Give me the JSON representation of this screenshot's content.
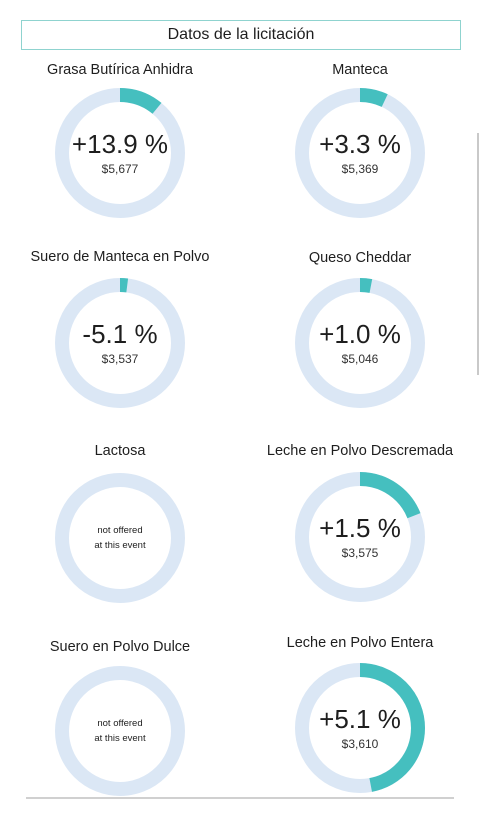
{
  "header": {
    "title": "Datos de la licitación"
  },
  "colors": {
    "track": "#dbe7f5",
    "accent": "#45bfbf",
    "frame": "#8fd3cf"
  },
  "products": [
    {
      "name": "Grasa Butírica Anhidra",
      "change": "+13.9 %",
      "price": "$5,677",
      "fraction": 0.11
    },
    {
      "name": "Manteca",
      "change": "+3.3 %",
      "price": "$5,369",
      "fraction": 0.07
    },
    {
      "name": "Suero de Manteca en Polvo",
      "change": "-5.1 %",
      "price": "$3,537",
      "fraction": 0.02
    },
    {
      "name": "Queso Cheddar",
      "change": "+1.0 %",
      "price": "$5,046",
      "fraction": 0.03
    },
    {
      "name": "Lactosa",
      "note_line1": "not offered",
      "note_line2": "at this event"
    },
    {
      "name": "Leche en Polvo Descremada",
      "change": "+1.5 %",
      "price": "$3,575",
      "fraction": 0.19
    },
    {
      "name": "Suero en Polvo Dulce",
      "note_line1": "not offered",
      "note_line2": "at this event"
    },
    {
      "name": "Leche en Polvo Entera",
      "change": "+5.1 %",
      "price": "$3,610",
      "fraction": 0.47
    }
  ],
  "chart_data": {
    "type": "pie",
    "title": "Datos de la licitación",
    "categories": [
      "Grasa Butírica Anhidra",
      "Manteca",
      "Suero de Manteca en Polvo",
      "Queso Cheddar",
      "Lactosa",
      "Leche en Polvo Descremada",
      "Suero en Polvo Dulce",
      "Leche en Polvo Entera"
    ],
    "change_percent": [
      13.9,
      3.3,
      -5.1,
      1.0,
      null,
      1.5,
      null,
      5.1
    ],
    "price_usd": [
      5677,
      5369,
      3537,
      5046,
      null,
      3575,
      null,
      3610
    ],
    "ring_fill_fraction": [
      0.11,
      0.07,
      0.02,
      0.03,
      0,
      0.19,
      0,
      0.47
    ]
  }
}
